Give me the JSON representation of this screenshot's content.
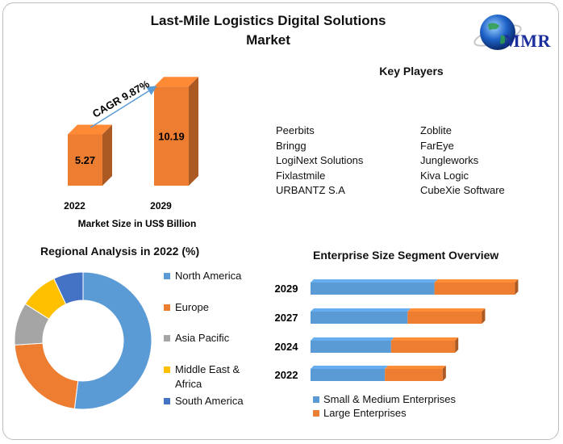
{
  "title_line1": "Last-Mile Logistics Digital Solutions",
  "title_line2": "Market",
  "logo_text": "MMR",
  "colors": {
    "orange": "#ed7d31",
    "blue": "#5b9bd5",
    "gray": "#a5a5a5",
    "yellow": "#ffc000",
    "darkblue": "#4472c4"
  },
  "key_players": {
    "title": "Key Players",
    "col1": [
      "Peerbits",
      "Bringg",
      "LogiNext Solutions",
      "Fixlastmile",
      "URBANTZ S.A"
    ],
    "col2": [
      "Zoblite",
      "FarEye",
      "Jungleworks",
      "Kiva Logic",
      "CubeXie Software"
    ]
  },
  "chart_data": [
    {
      "type": "bar",
      "categories": [
        "2022",
        "2029"
      ],
      "values": [
        5.27,
        10.19
      ],
      "data_labels": [
        "5.27",
        "10.19"
      ],
      "xlabel": "Market Size in US$ Billion",
      "annotation": "CAGR 9.87%"
    },
    {
      "type": "pie",
      "title": "Regional Analysis in 2022 (%)",
      "labels": [
        "North America",
        "Europe",
        "Asia Pacific",
        "Middle East & Africa",
        "South America"
      ],
      "values": [
        52,
        22,
        10,
        9,
        7
      ],
      "legend_position": "right"
    },
    {
      "type": "bar",
      "orientation": "horizontal",
      "stacked": true,
      "title": "Enterprise Size Segment Overview",
      "categories": [
        "2029",
        "2027",
        "2024",
        "2022"
      ],
      "series": [
        {
          "name": "Small & Medium Enterprises",
          "values": [
            60,
            47,
            39,
            36
          ]
        },
        {
          "name": "Large Enterprises",
          "values": [
            39,
            36,
            31,
            28
          ]
        }
      ],
      "legend_position": "bottom"
    }
  ]
}
